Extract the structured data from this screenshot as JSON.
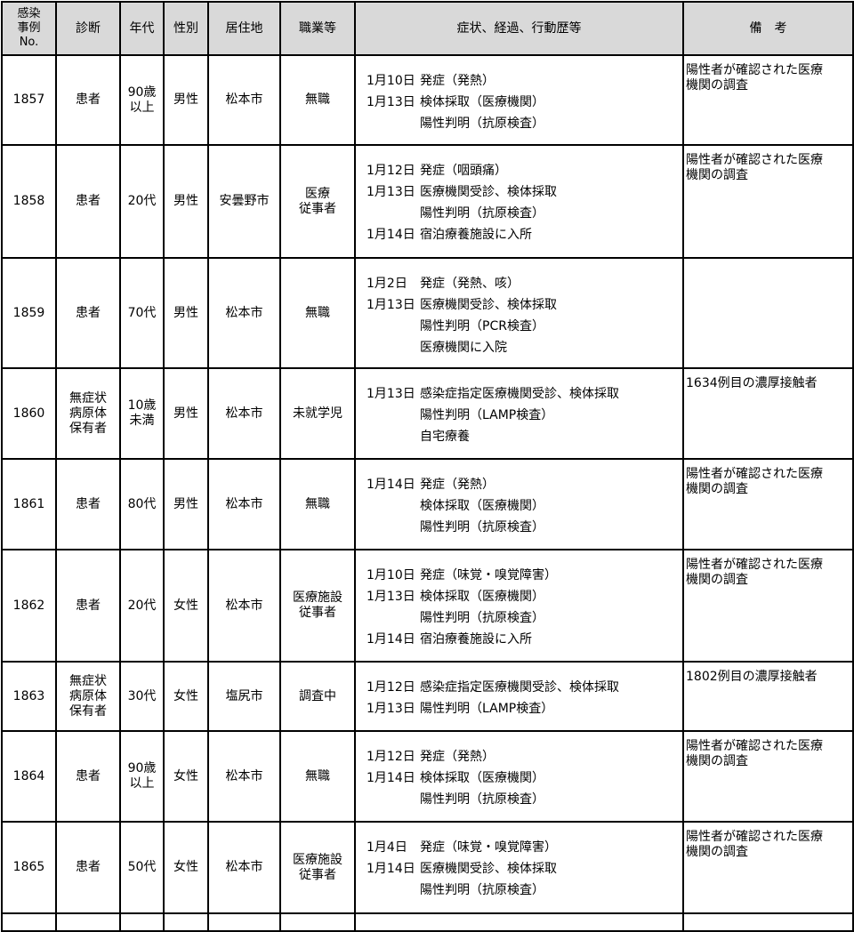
{
  "headers": [
    "感染\n事例\nNo.",
    "診断",
    "年代",
    "性別",
    "居住地",
    "職業等",
    "症状、経過、行動歴等",
    "備　考"
  ],
  "rows": [
    {
      "no": "1857",
      "diagnosis": "患者",
      "age": "90歳\n以上",
      "sex": "男性",
      "residence": "松本市",
      "occupation": "無職",
      "timeline": [
        {
          "date": "1月10日",
          "text": "発症（発熱）"
        },
        {
          "date": "1月13日",
          "text": "検体採取（医療機関）"
        },
        {
          "date": "",
          "text": "陽性判明（抗原検査）"
        }
      ],
      "note": "陽性者が確認された医療\n機関の調査"
    },
    {
      "no": "1858",
      "diagnosis": "患者",
      "age": "20代",
      "sex": "男性",
      "residence": "安曇野市",
      "occupation": "医療\n従事者",
      "timeline": [
        {
          "date": "1月12日",
          "text": "発症（咽頭痛）"
        },
        {
          "date": "1月13日",
          "text": "医療機関受診、検体採取"
        },
        {
          "date": "",
          "text": "陽性判明（抗原検査）"
        },
        {
          "date": "1月14日",
          "text": "宿泊療養施設に入所"
        }
      ],
      "note": "陽性者が確認された医療\n機関の調査"
    },
    {
      "no": "1859",
      "diagnosis": "患者",
      "age": "70代",
      "sex": "男性",
      "residence": "松本市",
      "occupation": "無職",
      "timeline": [
        {
          "date": " 1月2日",
          "text": "発症（発熱、咳）"
        },
        {
          "date": "1月13日",
          "text": "医療機関受診、検体採取"
        },
        {
          "date": "",
          "text": "陽性判明（PCR検査）"
        },
        {
          "date": "",
          "text": "医療機関に入院"
        }
      ],
      "note": ""
    },
    {
      "no": "1860",
      "diagnosis": "無症状\n病原体\n保有者",
      "age": "10歳\n未満",
      "sex": "男性",
      "residence": "松本市",
      "occupation": "未就学児",
      "timeline": [
        {
          "date": "1月13日",
          "text": "感染症指定医療機関受診、検体採取"
        },
        {
          "date": "",
          "text": "陽性判明（LAMP検査）"
        },
        {
          "date": "",
          "text": "自宅療養"
        }
      ],
      "note": "1634例目の濃厚接触者"
    },
    {
      "no": "1861",
      "diagnosis": "患者",
      "age": "80代",
      "sex": "男性",
      "residence": "松本市",
      "occupation": "無職",
      "timeline": [
        {
          "date": "1月14日",
          "text": "発症（発熱）"
        },
        {
          "date": "",
          "text": "検体採取（医療機関）"
        },
        {
          "date": "",
          "text": "陽性判明（抗原検査）"
        }
      ],
      "note": "陽性者が確認された医療\n機関の調査"
    },
    {
      "no": "1862",
      "diagnosis": "患者",
      "age": "20代",
      "sex": "女性",
      "residence": "松本市",
      "occupation": "医療施設\n従事者",
      "timeline": [
        {
          "date": "1月10日",
          "text": "発症（味覚・嗅覚障害）"
        },
        {
          "date": "1月13日",
          "text": "検体採取（医療機関）"
        },
        {
          "date": "",
          "text": "陽性判明（抗原検査）"
        },
        {
          "date": "1月14日",
          "text": "宿泊療養施設に入所"
        }
      ],
      "note": "陽性者が確認された医療\n機関の調査"
    },
    {
      "no": "1863",
      "diagnosis": "無症状\n病原体\n保有者",
      "age": "30代",
      "sex": "女性",
      "residence": "塩尻市",
      "occupation": "調査中",
      "timeline": [
        {
          "date": "1月12日",
          "text": "感染症指定医療機関受診、検体採取"
        },
        {
          "date": "1月13日",
          "text": "陽性判明（LAMP検査）"
        }
      ],
      "note": "1802例目の濃厚接触者"
    },
    {
      "no": "1864",
      "diagnosis": "患者",
      "age": "90歳\n以上",
      "sex": "女性",
      "residence": "松本市",
      "occupation": "無職",
      "timeline": [
        {
          "date": "1月12日",
          "text": "発症（発熱）"
        },
        {
          "date": "1月14日",
          "text": "検体採取（医療機関）"
        },
        {
          "date": "",
          "text": "陽性判明（抗原検査）"
        }
      ],
      "note": "陽性者が確認された医療\n機関の調査"
    },
    {
      "no": "1865",
      "diagnosis": "患者",
      "age": "50代",
      "sex": "女性",
      "residence": "松本市",
      "occupation": "医療施設\n従事者",
      "timeline": [
        {
          "date": " 1月4日",
          "text": "発症（味覚・嗅覚障害）"
        },
        {
          "date": "1月14日",
          "text": "医療機関受診、検体採取"
        },
        {
          "date": "",
          "text": "陽性判明（抗原検査）"
        }
      ],
      "note": "陽性者が確認された医療\n機関の調査"
    }
  ]
}
